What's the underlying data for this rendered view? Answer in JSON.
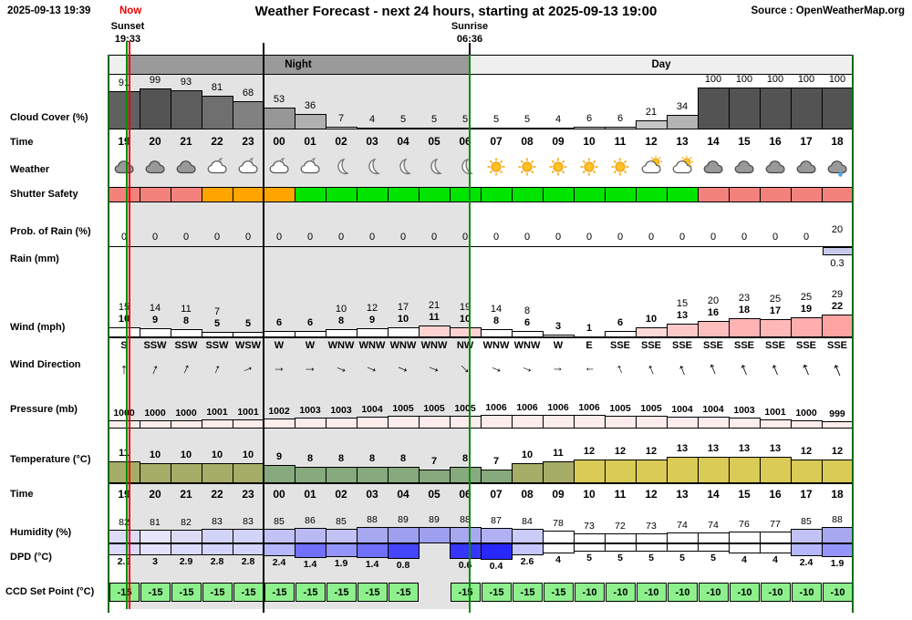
{
  "header": {
    "datetime": "2025-09-13 19:39",
    "now_label": "Now",
    "title": "Weather Forecast - next 24 hours, starting at 2025-09-13 19:00",
    "source": "Source : OpenWeatherMap.org",
    "sunset_label": "Sunset",
    "sunset_time": "19:33",
    "sunrise_label": "Sunrise",
    "sunrise_time": "06:36",
    "night_label": "Night",
    "day_label": "Day"
  },
  "row_labels": {
    "cloud": "Cloud Cover (%)",
    "time1": "Time",
    "weather": "Weather",
    "shutter": "Shutter Safety",
    "prob_rain": "Prob. of Rain (%)",
    "rain": "Rain (mm)",
    "wind": "Wind (mph)",
    "wind_dir": "Wind Direction",
    "pressure": "Pressure (mb)",
    "temperature": "Temperature (°C)",
    "time2": "Time",
    "humidity": "Humidity (%)",
    "dpd": "DPD (°C)",
    "ccd": "CCD Set Point (°C)"
  },
  "colors": {
    "now_line": "#e80000",
    "sun_event_line": "#0b8a0b",
    "chart_border": "#0a6a0a",
    "night_shade": "#e3e3e3",
    "night_band": "#9a9a9a",
    "day_band": "#efefef",
    "shutter_red": "#f4827c",
    "shutter_orange": "#ffa500",
    "shutter_green": "#00e400",
    "rain_bar": "#c9c9ea",
    "pressure_bar": "#fcecec",
    "ccd_cell": "#8df08d",
    "temp_yellow": "#d9cb55",
    "temp_olive": "#a6ad66",
    "temp_green": "#86aa7e"
  },
  "chart_data": {
    "type": "table",
    "title": "Weather Forecast - next 24 hours, starting at 2025-09-13 19:00",
    "hours": [
      "19",
      "20",
      "21",
      "22",
      "23",
      "00",
      "01",
      "02",
      "03",
      "04",
      "05",
      "06",
      "07",
      "08",
      "09",
      "10",
      "11",
      "12",
      "13",
      "14",
      "15",
      "16",
      "17",
      "18"
    ],
    "cloud_cover_pct": [
      91,
      99,
      93,
      81,
      68,
      53,
      36,
      7,
      4,
      5,
      5,
      5,
      5,
      5,
      4,
      6,
      6,
      21,
      34,
      100,
      100,
      100,
      100,
      100
    ],
    "weather_icons": [
      "cloud",
      "cloud",
      "cloud",
      "cloud-moon",
      "cloud-moon",
      "cloud-moon",
      "cloud-moon",
      "moon",
      "moon",
      "moon",
      "moon",
      "moon",
      "sun",
      "sun",
      "sun",
      "sun",
      "sun",
      "cloud-sun",
      "cloud-sun",
      "cloud",
      "cloud",
      "cloud",
      "cloud",
      "cloud-rain"
    ],
    "shutter_safety": [
      "red",
      "red",
      "red",
      "orange",
      "orange",
      "orange",
      "green",
      "green",
      "green",
      "green",
      "green",
      "green",
      "green",
      "green",
      "green",
      "green",
      "green",
      "green",
      "green",
      "red",
      "red",
      "red",
      "red",
      "red"
    ],
    "prob_rain_pct": [
      0,
      0,
      0,
      0,
      0,
      0,
      0,
      0,
      0,
      0,
      0,
      0,
      0,
      0,
      0,
      0,
      0,
      0,
      0,
      0,
      0,
      0,
      0,
      20
    ],
    "rain_mm": [
      null,
      null,
      null,
      null,
      null,
      null,
      null,
      null,
      null,
      null,
      null,
      null,
      null,
      null,
      null,
      null,
      null,
      null,
      null,
      null,
      null,
      null,
      null,
      0.3
    ],
    "wind_gust_mph": [
      15,
      14,
      11,
      7,
      null,
      null,
      null,
      10,
      12,
      17,
      21,
      19,
      14,
      8,
      null,
      null,
      null,
      null,
      15,
      20,
      23,
      25,
      25,
      29
    ],
    "wind_speed_mph": [
      10,
      9,
      8,
      5,
      5,
      6,
      6,
      8,
      9,
      10,
      11,
      10,
      8,
      6,
      3,
      1,
      6,
      10,
      13,
      16,
      18,
      17,
      19,
      22
    ],
    "wind_direction": [
      "S",
      "SSW",
      "SSW",
      "SSW",
      "WSW",
      "W",
      "W",
      "WNW",
      "WNW",
      "WNW",
      "WNW",
      "NW",
      "WNW",
      "WNW",
      "W",
      "E",
      "SSE",
      "SSE",
      "SSE",
      "SSE",
      "SSE",
      "SSE",
      "SSE",
      "SSE"
    ],
    "wind_bar_colors": [
      "#ffffff",
      "#ffffff",
      "#ffffff",
      "#ffffff",
      "#ffffff",
      "#ffffff",
      "#ffffff",
      "#ffffff",
      "#ffffff",
      "#ffffff",
      "#ffd2d2",
      "#ffd2d2",
      "#ffffff",
      "#ffffff",
      "#ffffff",
      "#ffffff",
      "#ffffff",
      "#ffd9d9",
      "#ffc9c9",
      "#ffbdbd",
      "#ffb3b3",
      "#ffb8b8",
      "#ffadad",
      "#ffa3a3"
    ],
    "pressure_mb": [
      1000,
      1000,
      1000,
      1001,
      1001,
      1002,
      1003,
      1003,
      1004,
      1005,
      1005,
      1005,
      1006,
      1006,
      1006,
      1006,
      1005,
      1005,
      1004,
      1004,
      1003,
      1001,
      1000,
      999
    ],
    "temperature_c": [
      11,
      10,
      10,
      10,
      10,
      9,
      8,
      8,
      8,
      8,
      7,
      8,
      7,
      10,
      11,
      12,
      12,
      12,
      13,
      13,
      13,
      13,
      12,
      12
    ],
    "humidity_pct": [
      82,
      81,
      82,
      83,
      83,
      85,
      86,
      85,
      88,
      89,
      89,
      88,
      87,
      84,
      78,
      73,
      72,
      73,
      74,
      74,
      76,
      77,
      85,
      88
    ],
    "dpd_c": [
      2.9,
      3,
      2.9,
      2.8,
      2.8,
      2.4,
      1.4,
      1.9,
      1.4,
      0.8,
      null,
      0.6,
      0.4,
      2.6,
      4,
      5,
      5,
      5,
      5,
      5,
      4,
      4,
      2.4,
      1.9
    ],
    "ccd_set_point_c": [
      -15,
      -15,
      -15,
      -15,
      -15,
      -15,
      -15,
      -15,
      -15,
      -15,
      null,
      -15,
      -15,
      -15,
      -15,
      -10,
      -10,
      -10,
      -10,
      -10,
      -10,
      -10,
      -10,
      -10
    ]
  }
}
